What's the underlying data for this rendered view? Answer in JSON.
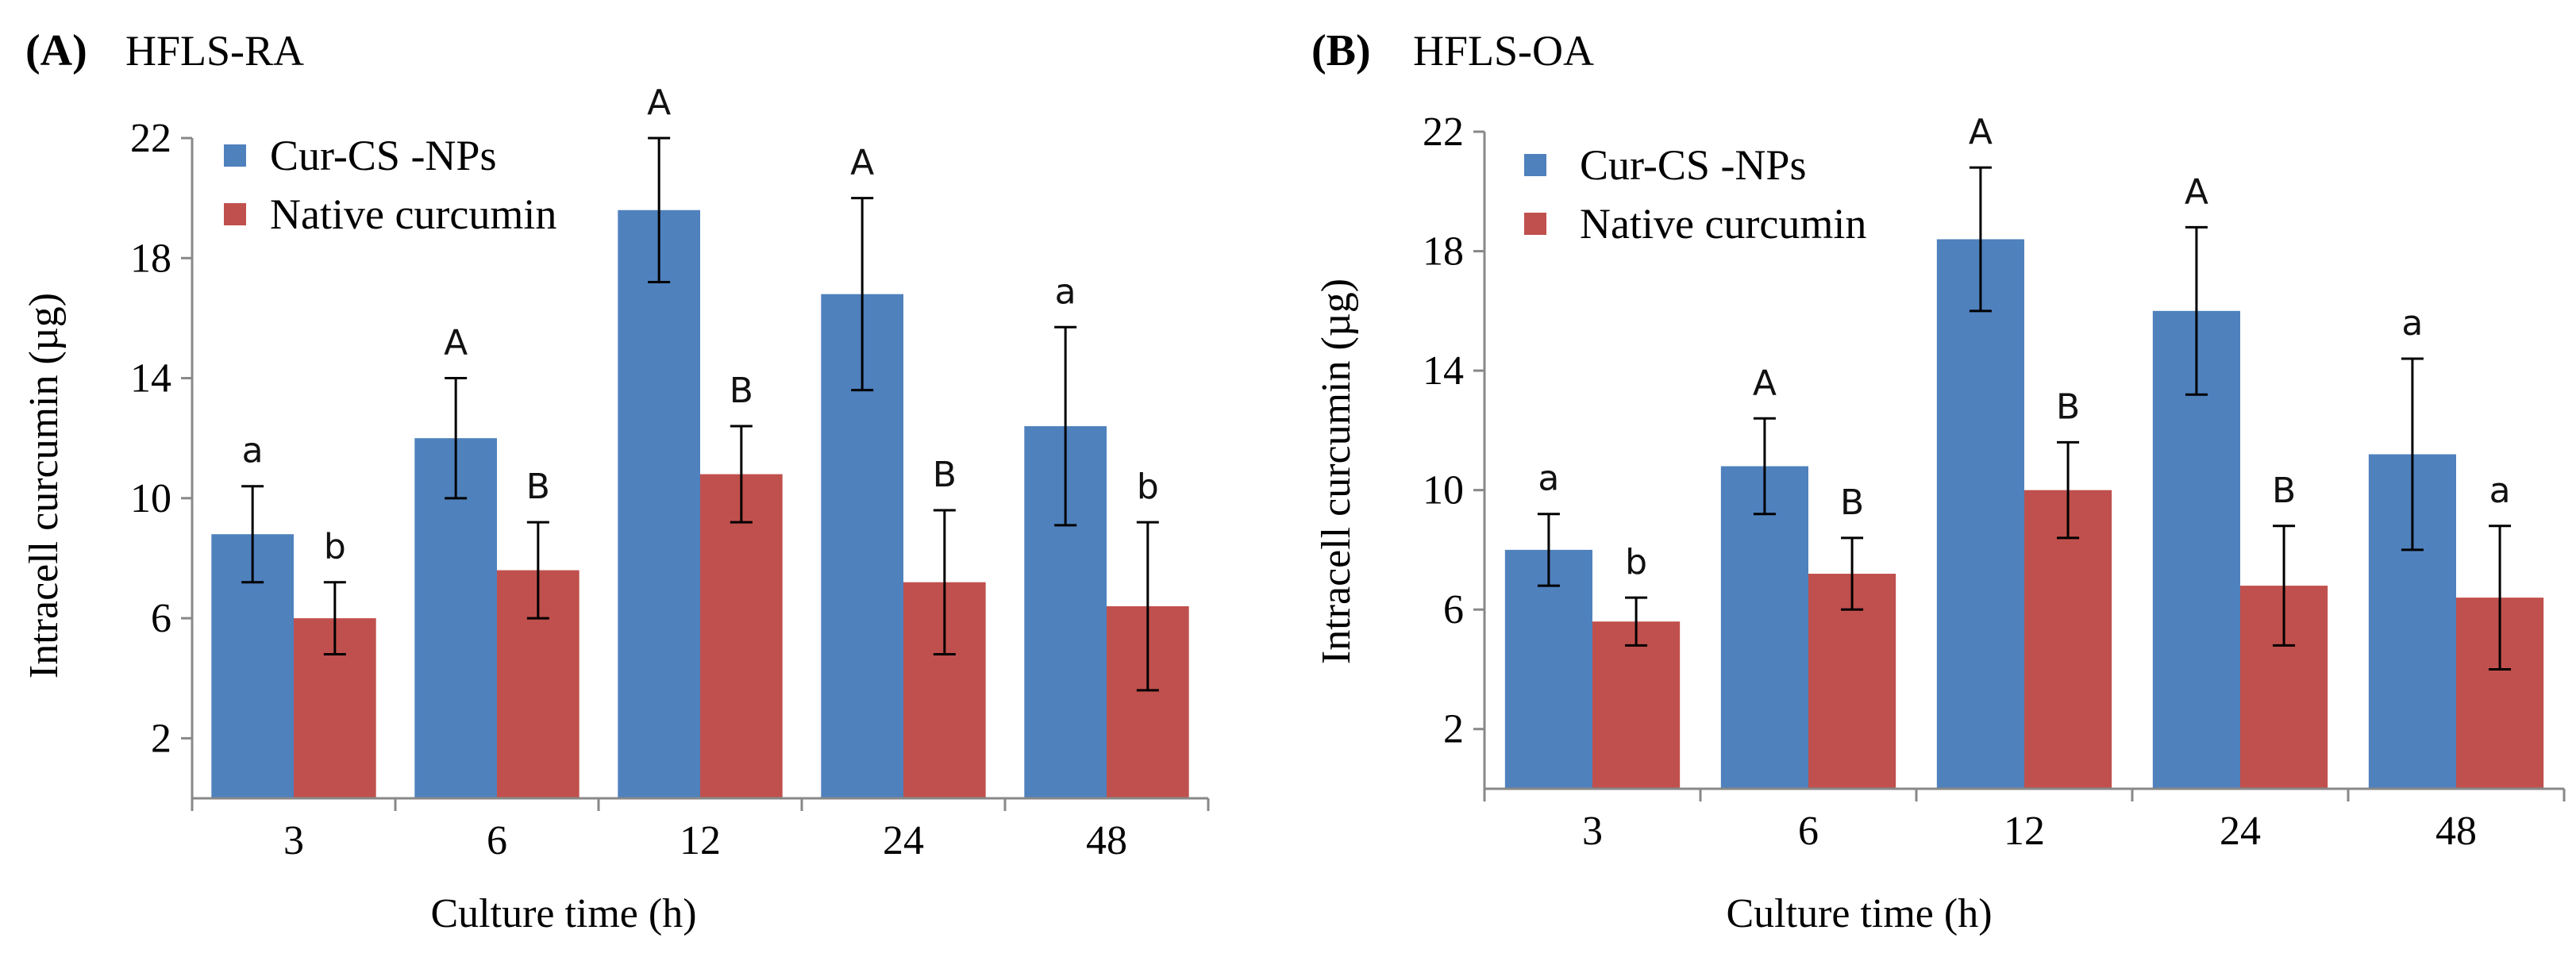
{
  "chart_data": [
    {
      "type": "bar",
      "panel_letter": "(A)",
      "title": "HFLS-RA",
      "xlabel": "Culture time (h)",
      "ylabel": "Intracell curcumin  (µg)",
      "ylim": [
        0,
        22
      ],
      "yticks": [
        2,
        6,
        10,
        14,
        18,
        22
      ],
      "categories": [
        "3",
        "6",
        "12",
        "24",
        "48"
      ],
      "legend_position": "top-left",
      "series": [
        {
          "name": "Cur-CS -NPs",
          "color": "#4F81BD",
          "values": [
            8.8,
            12.0,
            19.6,
            16.8,
            12.4
          ],
          "errors": [
            1.6,
            2.0,
            2.4,
            3.2,
            3.3
          ],
          "sig_labels": [
            "a",
            "A",
            "A",
            "A",
            "a"
          ]
        },
        {
          "name": "Native curcumin",
          "color": "#C0504D",
          "values": [
            6.0,
            7.6,
            10.8,
            7.2,
            6.4
          ],
          "errors": [
            1.2,
            1.6,
            1.6,
            2.4,
            2.8
          ],
          "sig_labels": [
            "b",
            "B",
            "B",
            "B",
            "b"
          ]
        }
      ]
    },
    {
      "type": "bar",
      "panel_letter": "(B)",
      "title": "HFLS-OA",
      "xlabel": "Culture time (h)",
      "ylabel": "Intracell curcumin  (µg)",
      "ylim": [
        0,
        22
      ],
      "yticks": [
        2,
        6,
        10,
        14,
        18,
        22
      ],
      "categories": [
        "3",
        "6",
        "12",
        "24",
        "48"
      ],
      "legend_position": "top-left",
      "series": [
        {
          "name": "Cur-CS -NPs",
          "color": "#4F81BD",
          "values": [
            8.0,
            10.8,
            18.4,
            16.0,
            11.2
          ],
          "errors": [
            1.2,
            1.6,
            2.4,
            2.8,
            3.2
          ],
          "sig_labels": [
            "a",
            "A",
            "A",
            "A",
            "a"
          ]
        },
        {
          "name": "Native curcumin",
          "color": "#C0504D",
          "values": [
            5.6,
            7.2,
            10.0,
            6.8,
            6.4
          ],
          "errors": [
            0.8,
            1.2,
            1.6,
            2.0,
            2.4
          ],
          "sig_labels": [
            "b",
            "B",
            "B",
            "B",
            "a"
          ]
        }
      ]
    }
  ]
}
